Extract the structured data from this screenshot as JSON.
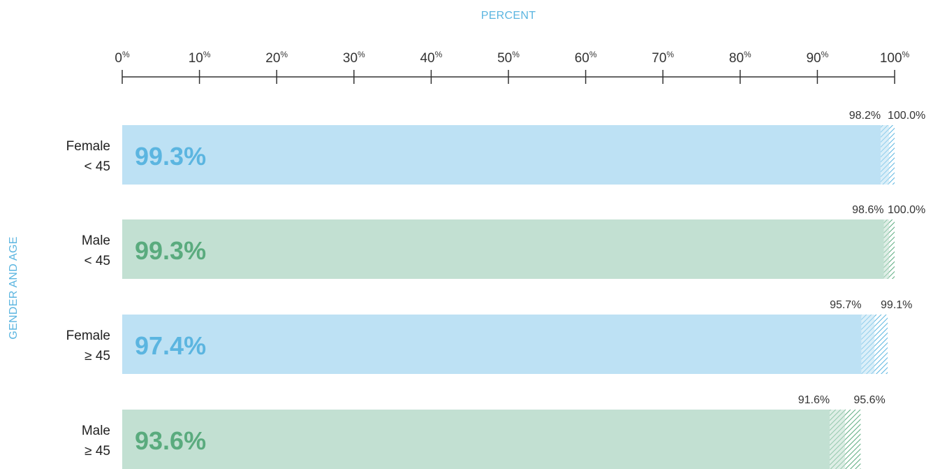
{
  "chart_data": {
    "type": "bar",
    "orientation": "horizontal",
    "xlabel": "PERCENT",
    "ylabel": "GENDER AND AGE",
    "xlim": [
      0,
      100
    ],
    "x_ticks": [
      0,
      10,
      20,
      30,
      40,
      50,
      60,
      70,
      80,
      90,
      100
    ],
    "tick_suffix": "%",
    "colors": {
      "female_fill": "#bde1f4",
      "female_text": "#5bb5e0",
      "male_fill": "#c2e0d2",
      "male_text": "#5aab7e",
      "axis": "#333333"
    },
    "categories": [
      {
        "line1": "Female",
        "line2": "< 45",
        "value": 99.3,
        "value_label": "99.3%",
        "ci_low": 98.2,
        "ci_low_label": "98.2%",
        "ci_high": 100.0,
        "ci_high_label": "100.0%",
        "group": "female"
      },
      {
        "line1": "Male",
        "line2": "< 45",
        "value": 99.3,
        "value_label": "99.3%",
        "ci_low": 98.6,
        "ci_low_label": "98.6%",
        "ci_high": 100.0,
        "ci_high_label": "100.0%",
        "group": "male"
      },
      {
        "line1": "Female",
        "line2": "≥ 45",
        "value": 97.4,
        "value_label": "97.4%",
        "ci_low": 95.7,
        "ci_low_label": "95.7%",
        "ci_high": 99.1,
        "ci_high_label": "99.1%",
        "group": "female"
      },
      {
        "line1": "Male",
        "line2": "≥ 45",
        "value": 93.6,
        "value_label": "93.6%",
        "ci_low": 91.6,
        "ci_low_label": "91.6%",
        "ci_high": 95.6,
        "ci_high_label": "95.6%",
        "group": "male"
      }
    ]
  }
}
